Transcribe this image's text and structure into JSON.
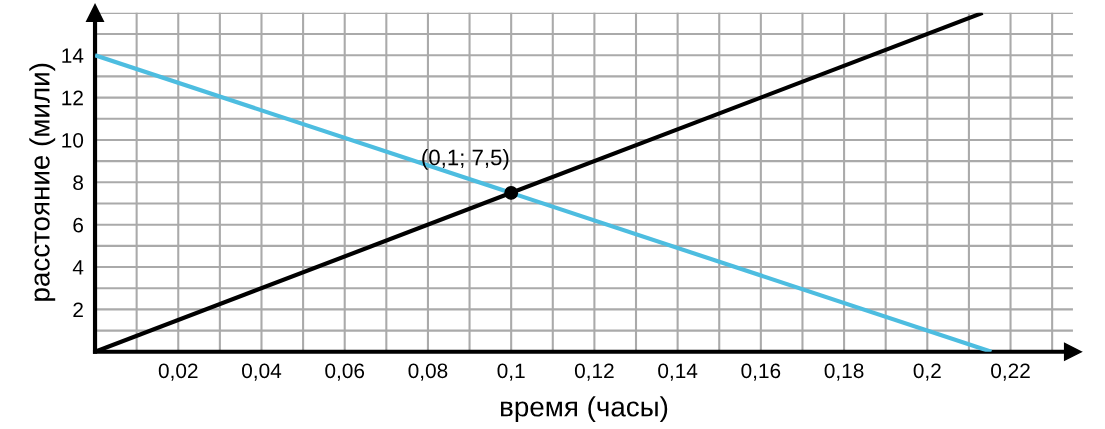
{
  "chart_data": {
    "type": "line",
    "xlabel": "время (часы)",
    "ylabel": "расстояние (мили)",
    "series": [
      {
        "color": "#000000",
        "x": [
          0,
          0.2133
        ],
        "values": [
          0,
          16
        ]
      },
      {
        "color": "#4dbde0",
        "x": [
          0,
          0.2154
        ],
        "values": [
          14,
          0
        ]
      },
      {
        "type": "scatter",
        "color": "#000000",
        "x": [
          0.1
        ],
        "values": [
          7.5
        ],
        "marker": "circle"
      }
    ],
    "annotations": [
      {
        "text": "(0,1; 7,5)",
        "x": 0.1,
        "y": 7.5
      }
    ],
    "xlim": [
      0,
      0.235
    ],
    "ylim": [
      0,
      16
    ],
    "xticks": [
      {
        "value": 0.01,
        "label": null
      },
      {
        "value": 0.02,
        "label": "0,02"
      },
      {
        "value": 0.03,
        "label": null
      },
      {
        "value": 0.04,
        "label": "0,04"
      },
      {
        "value": 0.05,
        "label": null
      },
      {
        "value": 0.06,
        "label": "0,06"
      },
      {
        "value": 0.07,
        "label": null
      },
      {
        "value": 0.08,
        "label": "0,08"
      },
      {
        "value": 0.09,
        "label": null
      },
      {
        "value": 0.1,
        "label": "0,1"
      },
      {
        "value": 0.11,
        "label": null
      },
      {
        "value": 0.12,
        "label": "0,12"
      },
      {
        "value": 0.13,
        "label": null
      },
      {
        "value": 0.14,
        "label": "0,14"
      },
      {
        "value": 0.15,
        "label": null
      },
      {
        "value": 0.16,
        "label": "0,16"
      },
      {
        "value": 0.17,
        "label": null
      },
      {
        "value": 0.18,
        "label": "0,18"
      },
      {
        "value": 0.19,
        "label": null
      },
      {
        "value": 0.2,
        "label": "0,2"
      },
      {
        "value": 0.21,
        "label": null
      },
      {
        "value": 0.22,
        "label": "0,22"
      },
      {
        "value": 0.23,
        "label": null
      }
    ],
    "yticks": [
      {
        "value": 1,
        "label": null
      },
      2,
      {
        "value": 3,
        "label": null
      },
      4,
      {
        "value": 5,
        "label": null
      },
      6,
      {
        "value": 7,
        "label": null
      },
      8,
      {
        "value": 9,
        "label": null
      },
      10,
      {
        "value": 11,
        "label": null
      },
      12,
      {
        "value": 13,
        "label": null
      },
      14,
      {
        "value": 15,
        "label": null
      },
      {
        "value": 16,
        "label": null
      }
    ],
    "grid": true,
    "line_style": "solid"
  }
}
